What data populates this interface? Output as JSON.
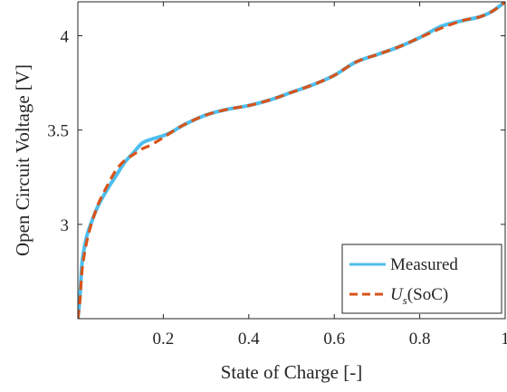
{
  "chart_data": {
    "type": "line",
    "xlabel": "State of Charge [-]",
    "ylabel": "Open Circuit Voltage [V]",
    "xlim": [
      0,
      1
    ],
    "ylim": [
      2.5,
      4.18
    ],
    "xticks": [
      0.2,
      0.4,
      0.6,
      0.8,
      1
    ],
    "xtick_labels": [
      "0.2",
      "0.4",
      "0.6",
      "0.8",
      "1"
    ],
    "yticks": [
      3,
      3.5,
      4
    ],
    "ytick_labels": [
      "3",
      "3.5",
      "4"
    ],
    "grid": false,
    "legend_position": "bottom-right",
    "series": [
      {
        "name": "Measured",
        "style": "solid",
        "color": "#4DBEEE",
        "x": [
          0.0,
          0.005,
          0.01,
          0.02,
          0.03,
          0.04,
          0.05,
          0.07,
          0.09,
          0.11,
          0.13,
          0.15,
          0.17,
          0.2,
          0.22,
          0.25,
          0.3,
          0.35,
          0.4,
          0.45,
          0.5,
          0.55,
          0.6,
          0.65,
          0.7,
          0.75,
          0.8,
          0.85,
          0.9,
          0.94,
          0.97,
          1.0
        ],
        "y": [
          2.5,
          2.62,
          2.8,
          2.93,
          3.0,
          3.06,
          3.11,
          3.19,
          3.26,
          3.33,
          3.38,
          3.43,
          3.45,
          3.47,
          3.49,
          3.53,
          3.58,
          3.61,
          3.63,
          3.66,
          3.7,
          3.74,
          3.79,
          3.86,
          3.9,
          3.94,
          3.99,
          4.05,
          4.08,
          4.1,
          4.13,
          4.18
        ]
      },
      {
        "name": "U_s(SoC)",
        "style": "dashed",
        "color": "#D95319",
        "x": [
          0.0,
          0.005,
          0.01,
          0.02,
          0.03,
          0.04,
          0.05,
          0.07,
          0.09,
          0.11,
          0.13,
          0.15,
          0.17,
          0.2,
          0.22,
          0.25,
          0.3,
          0.35,
          0.4,
          0.45,
          0.5,
          0.55,
          0.6,
          0.65,
          0.7,
          0.75,
          0.8,
          0.85,
          0.9,
          0.94,
          0.97,
          1.0
        ],
        "y": [
          2.5,
          2.6,
          2.76,
          2.9,
          2.99,
          3.06,
          3.12,
          3.21,
          3.29,
          3.34,
          3.37,
          3.4,
          3.42,
          3.46,
          3.49,
          3.53,
          3.58,
          3.61,
          3.63,
          3.66,
          3.7,
          3.74,
          3.79,
          3.86,
          3.9,
          3.94,
          3.99,
          4.04,
          4.08,
          4.1,
          4.13,
          4.18
        ]
      }
    ]
  },
  "legend": {
    "entries": [
      {
        "label": "Measured",
        "math": false
      },
      {
        "label_base": "U",
        "label_sub": "s",
        "label_rest": "(SoC)",
        "math": true
      }
    ]
  }
}
